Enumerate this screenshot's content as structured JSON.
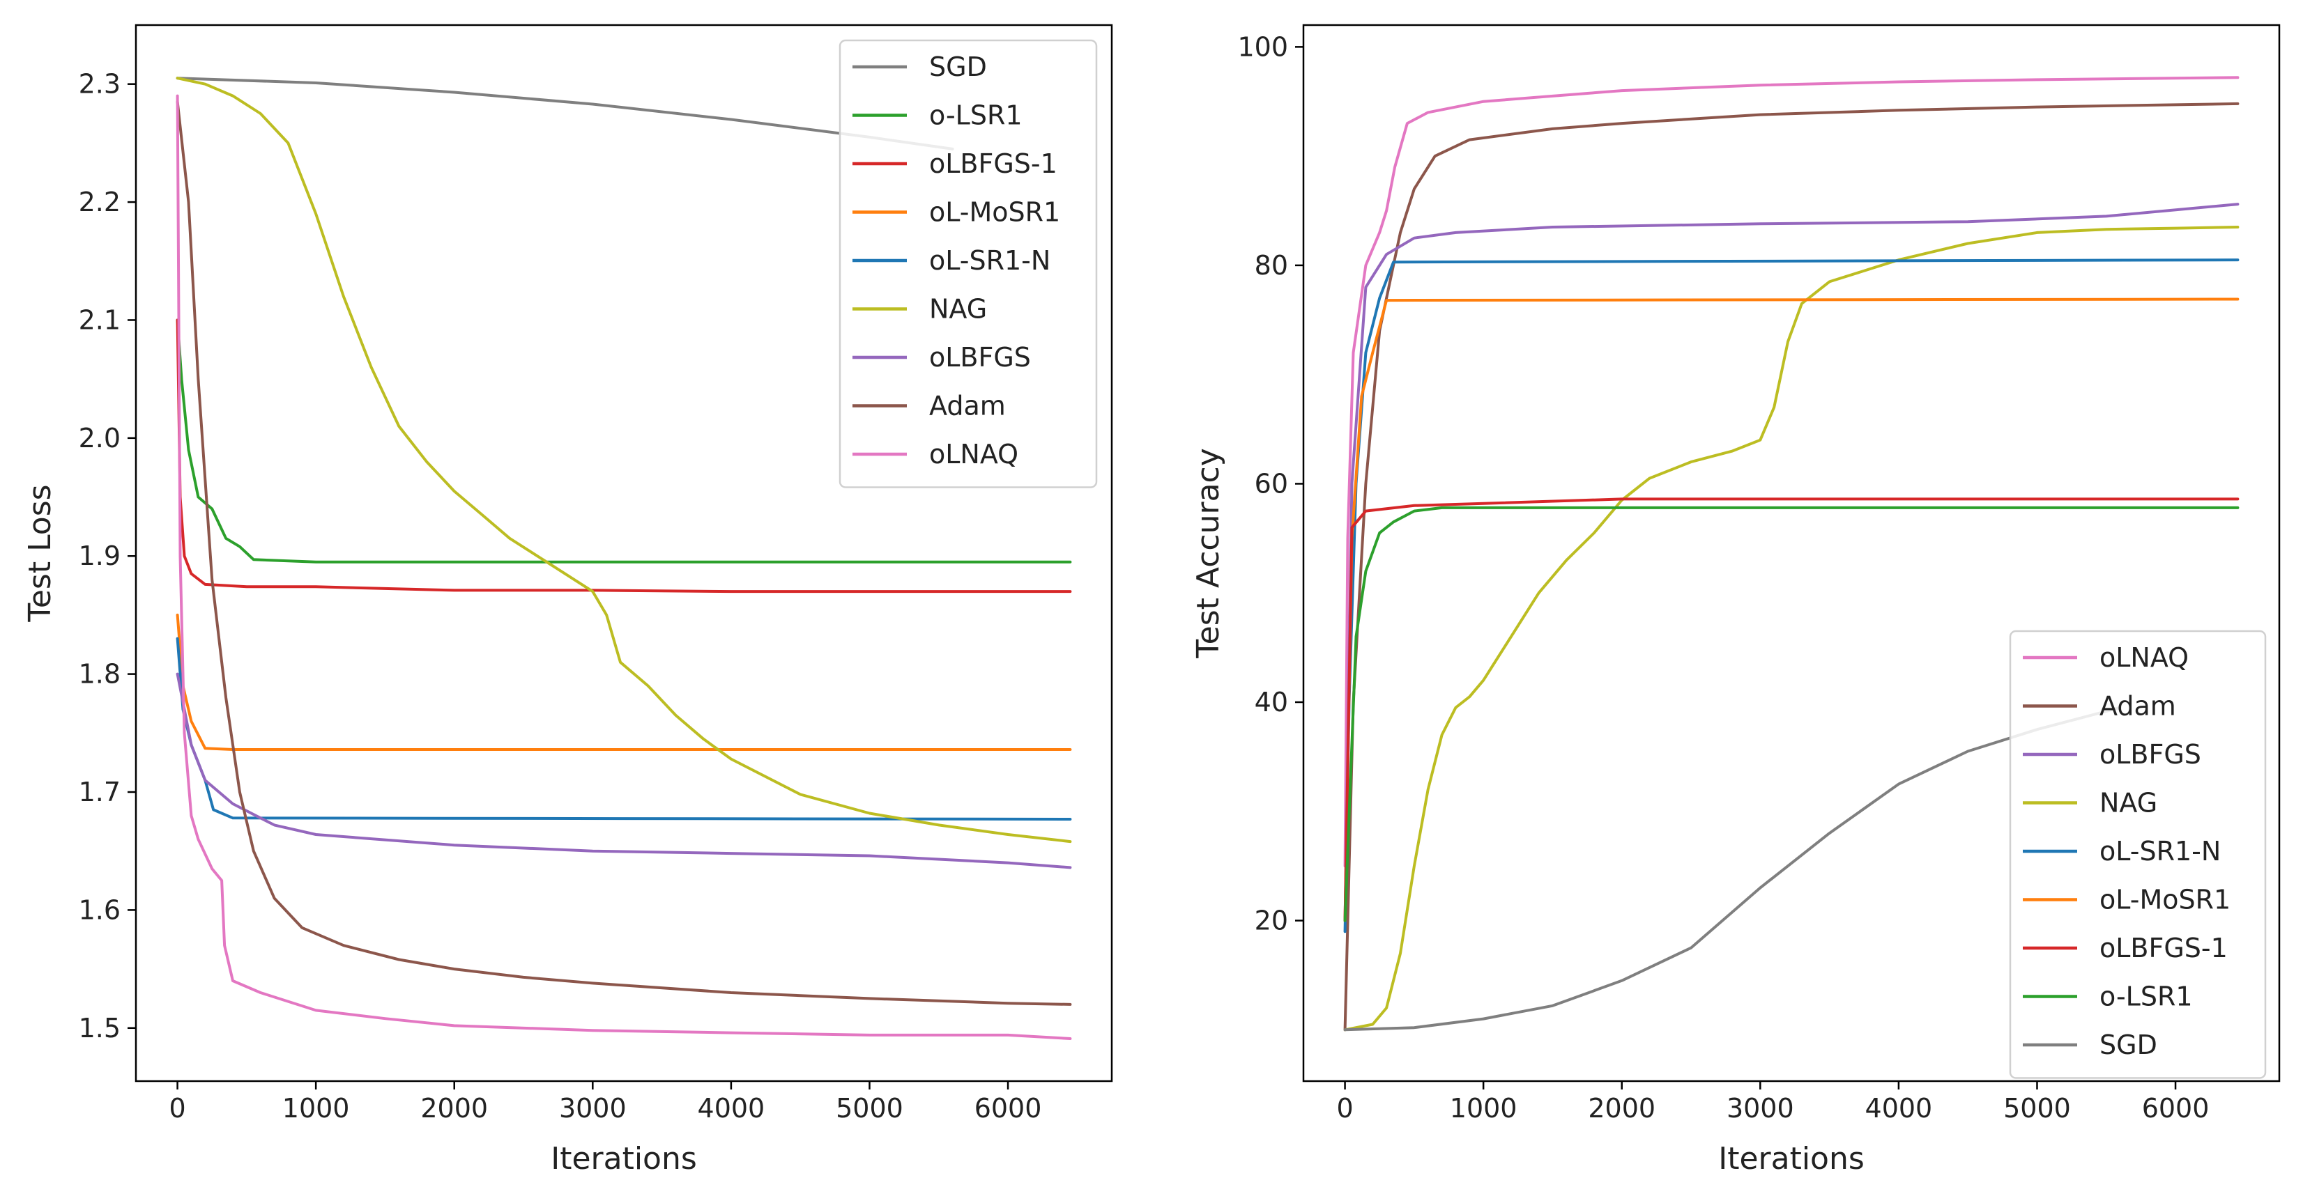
{
  "colors": {
    "SGD": "#7f7f7f",
    "o-LSR1": "#2ca02c",
    "oLBFGS-1": "#d62728",
    "oL-MoSR1": "#ff7f0e",
    "oL-SR1-N": "#1f77b4",
    "NAG": "#bcbd22",
    "oLBFGS": "#9467bd",
    "Adam": "#8c564b",
    "oLNAQ": "#e377c2"
  },
  "chart_data": [
    {
      "type": "line",
      "xlabel": "Iterations",
      "ylabel": "Test Loss",
      "xlim": [
        -300,
        6750
      ],
      "ylim": [
        1.455,
        2.35
      ],
      "xticks": [
        "0",
        "1000",
        "2000",
        "3000",
        "4000",
        "5000",
        "6000"
      ],
      "yticks": [
        "1.5",
        "1.6",
        "1.7",
        "1.8",
        "1.9",
        "2.0",
        "2.1",
        "2.2",
        "2.3"
      ],
      "grid": false,
      "legend_position": "top-right",
      "legend_order": [
        "SGD",
        "o-LSR1",
        "oLBFGS-1",
        "oL-MoSR1",
        "oL-SR1-N",
        "NAG",
        "oLBFGS",
        "Adam",
        "oLNAQ"
      ],
      "series": [
        {
          "name": "SGD",
          "points": [
            [
              0,
              2.305
            ],
            [
              1000,
              2.301
            ],
            [
              2000,
              2.293
            ],
            [
              3000,
              2.283
            ],
            [
              4000,
              2.27
            ],
            [
              5000,
              2.255
            ],
            [
              5600,
              2.245
            ]
          ]
        },
        {
          "name": "o-LSR1",
          "points": [
            [
              0,
              2.1
            ],
            [
              30,
              2.05
            ],
            [
              80,
              1.99
            ],
            [
              150,
              1.95
            ],
            [
              250,
              1.94
            ],
            [
              350,
              1.915
            ],
            [
              450,
              1.908
            ],
            [
              550,
              1.897
            ],
            [
              1000,
              1.895
            ],
            [
              3000,
              1.895
            ],
            [
              6450,
              1.895
            ]
          ]
        },
        {
          "name": "oLBFGS-1",
          "points": [
            [
              0,
              2.1
            ],
            [
              20,
              1.95
            ],
            [
              50,
              1.9
            ],
            [
              100,
              1.885
            ],
            [
              200,
              1.876
            ],
            [
              500,
              1.874
            ],
            [
              1000,
              1.874
            ],
            [
              2000,
              1.871
            ],
            [
              3000,
              1.871
            ],
            [
              4000,
              1.87
            ],
            [
              6450,
              1.87
            ]
          ]
        },
        {
          "name": "oL-MoSR1",
          "points": [
            [
              0,
              1.85
            ],
            [
              40,
              1.79
            ],
            [
              100,
              1.76
            ],
            [
              200,
              1.737
            ],
            [
              400,
              1.736
            ],
            [
              6450,
              1.736
            ]
          ]
        },
        {
          "name": "oL-SR1-N",
          "points": [
            [
              0,
              1.83
            ],
            [
              40,
              1.77
            ],
            [
              100,
              1.74
            ],
            [
              200,
              1.71
            ],
            [
              260,
              1.685
            ],
            [
              400,
              1.678
            ],
            [
              6450,
              1.677
            ]
          ]
        },
        {
          "name": "NAG",
          "points": [
            [
              0,
              2.305
            ],
            [
              200,
              2.3
            ],
            [
              400,
              2.29
            ],
            [
              600,
              2.275
            ],
            [
              800,
              2.25
            ],
            [
              1000,
              2.19
            ],
            [
              1200,
              2.12
            ],
            [
              1400,
              2.06
            ],
            [
              1600,
              2.01
            ],
            [
              1800,
              1.98
            ],
            [
              2000,
              1.955
            ],
            [
              2200,
              1.935
            ],
            [
              2400,
              1.915
            ],
            [
              2600,
              1.9
            ],
            [
              2800,
              1.885
            ],
            [
              3000,
              1.87
            ],
            [
              3100,
              1.85
            ],
            [
              3200,
              1.81
            ],
            [
              3400,
              1.79
            ],
            [
              3600,
              1.765
            ],
            [
              3800,
              1.745
            ],
            [
              4000,
              1.728
            ],
            [
              4500,
              1.698
            ],
            [
              5000,
              1.682
            ],
            [
              5500,
              1.672
            ],
            [
              6000,
              1.664
            ],
            [
              6450,
              1.658
            ]
          ]
        },
        {
          "name": "oLBFGS",
          "points": [
            [
              0,
              1.8
            ],
            [
              100,
              1.74
            ],
            [
              200,
              1.71
            ],
            [
              400,
              1.69
            ],
            [
              700,
              1.672
            ],
            [
              1000,
              1.664
            ],
            [
              2000,
              1.655
            ],
            [
              3000,
              1.65
            ],
            [
              4000,
              1.648
            ],
            [
              5000,
              1.646
            ],
            [
              6000,
              1.64
            ],
            [
              6450,
              1.636
            ]
          ]
        },
        {
          "name": "Adam",
          "points": [
            [
              0,
              2.285
            ],
            [
              80,
              2.2
            ],
            [
              150,
              2.05
            ],
            [
              250,
              1.88
            ],
            [
              350,
              1.78
            ],
            [
              450,
              1.7
            ],
            [
              550,
              1.65
            ],
            [
              700,
              1.61
            ],
            [
              900,
              1.585
            ],
            [
              1200,
              1.57
            ],
            [
              1600,
              1.558
            ],
            [
              2000,
              1.55
            ],
            [
              2500,
              1.543
            ],
            [
              3000,
              1.538
            ],
            [
              4000,
              1.53
            ],
            [
              5000,
              1.525
            ],
            [
              6000,
              1.521
            ],
            [
              6450,
              1.52
            ]
          ]
        },
        {
          "name": "oLNAQ",
          "points": [
            [
              0,
              2.29
            ],
            [
              20,
              1.9
            ],
            [
              50,
              1.75
            ],
            [
              100,
              1.68
            ],
            [
              150,
              1.66
            ],
            [
              250,
              1.635
            ],
            [
              320,
              1.625
            ],
            [
              340,
              1.57
            ],
            [
              400,
              1.54
            ],
            [
              600,
              1.53
            ],
            [
              1000,
              1.515
            ],
            [
              1500,
              1.508
            ],
            [
              2000,
              1.502
            ],
            [
              3000,
              1.498
            ],
            [
              4000,
              1.496
            ],
            [
              5000,
              1.494
            ],
            [
              6000,
              1.494
            ],
            [
              6450,
              1.491
            ]
          ]
        }
      ]
    },
    {
      "type": "line",
      "xlabel": "Iterations",
      "ylabel": "Test Accuracy",
      "xlim": [
        -300,
        6750
      ],
      "ylim": [
        5.3,
        102
      ],
      "xticks": [
        "0",
        "1000",
        "2000",
        "3000",
        "4000",
        "5000",
        "6000"
      ],
      "yticks": [
        "20",
        "40",
        "60",
        "80",
        "100"
      ],
      "grid": false,
      "legend_position": "lower-right",
      "legend_order": [
        "oLNAQ",
        "Adam",
        "oLBFGS",
        "NAG",
        "oL-SR1-N",
        "oL-MoSR1",
        "oLBFGS-1",
        "o-LSR1",
        "SGD"
      ],
      "series": [
        {
          "name": "oLNAQ",
          "points": [
            [
              0,
              25
            ],
            [
              20,
              55
            ],
            [
              60,
              72
            ],
            [
              150,
              80
            ],
            [
              250,
              83
            ],
            [
              300,
              85
            ],
            [
              360,
              89
            ],
            [
              450,
              93
            ],
            [
              600,
              94
            ],
            [
              1000,
              95
            ],
            [
              1500,
              95.5
            ],
            [
              2000,
              96
            ],
            [
              3000,
              96.5
            ],
            [
              4000,
              96.8
            ],
            [
              5000,
              97
            ],
            [
              6450,
              97.2
            ]
          ]
        },
        {
          "name": "Adam",
          "points": [
            [
              0,
              10
            ],
            [
              60,
              40
            ],
            [
              150,
              60
            ],
            [
              250,
              74
            ],
            [
              400,
              83
            ],
            [
              500,
              87
            ],
            [
              650,
              90
            ],
            [
              900,
              91.5
            ],
            [
              1500,
              92.5
            ],
            [
              2000,
              93
            ],
            [
              3000,
              93.8
            ],
            [
              4000,
              94.2
            ],
            [
              5000,
              94.5
            ],
            [
              6450,
              94.8
            ]
          ]
        },
        {
          "name": "oLBFGS",
          "points": [
            [
              0,
              20
            ],
            [
              50,
              60
            ],
            [
              150,
              78
            ],
            [
              300,
              81
            ],
            [
              500,
              82.5
            ],
            [
              800,
              83
            ],
            [
              1500,
              83.5
            ],
            [
              3000,
              83.8
            ],
            [
              4500,
              84
            ],
            [
              5500,
              84.5
            ],
            [
              6450,
              85.6
            ]
          ]
        },
        {
          "name": "NAG",
          "points": [
            [
              0,
              10
            ],
            [
              200,
              10.5
            ],
            [
              300,
              12
            ],
            [
              400,
              17
            ],
            [
              500,
              25
            ],
            [
              600,
              32
            ],
            [
              700,
              37
            ],
            [
              800,
              39.5
            ],
            [
              900,
              40.5
            ],
            [
              1000,
              42
            ],
            [
              1200,
              46
            ],
            [
              1400,
              50
            ],
            [
              1600,
              53
            ],
            [
              1800,
              55.5
            ],
            [
              2000,
              58.5
            ],
            [
              2200,
              60.5
            ],
            [
              2500,
              62
            ],
            [
              2800,
              63
            ],
            [
              3000,
              64
            ],
            [
              3100,
              67
            ],
            [
              3200,
              73
            ],
            [
              3300,
              76.5
            ],
            [
              3500,
              78.5
            ],
            [
              4000,
              80.5
            ],
            [
              4500,
              82
            ],
            [
              5000,
              83
            ],
            [
              5500,
              83.3
            ],
            [
              6000,
              83.4
            ],
            [
              6450,
              83.5
            ]
          ]
        },
        {
          "name": "oL-SR1-N",
          "points": [
            [
              0,
              19
            ],
            [
              30,
              40
            ],
            [
              80,
              60
            ],
            [
              150,
              72
            ],
            [
              250,
              77
            ],
            [
              350,
              80.3
            ],
            [
              6450,
              80.5
            ]
          ]
        },
        {
          "name": "oL-MoSR1",
          "points": [
            [
              0,
              20
            ],
            [
              50,
              55
            ],
            [
              120,
              68
            ],
            [
              200,
              72
            ],
            [
              300,
              76.8
            ],
            [
              6450,
              76.9
            ]
          ]
        },
        {
          "name": "oLBFGS-1",
          "points": [
            [
              0,
              20
            ],
            [
              50,
              56
            ],
            [
              150,
              57.5
            ],
            [
              500,
              58
            ],
            [
              1000,
              58.2
            ],
            [
              2000,
              58.6
            ],
            [
              6450,
              58.6
            ]
          ]
        },
        {
          "name": "o-LSR1",
          "points": [
            [
              0,
              20
            ],
            [
              80,
              46
            ],
            [
              150,
              52
            ],
            [
              250,
              55.5
            ],
            [
              350,
              56.5
            ],
            [
              500,
              57.5
            ],
            [
              700,
              57.8
            ],
            [
              6450,
              57.8
            ]
          ]
        },
        {
          "name": "SGD",
          "points": [
            [
              0,
              10
            ],
            [
              500,
              10.2
            ],
            [
              1000,
              11
            ],
            [
              1500,
              12.2
            ],
            [
              2000,
              14.5
            ],
            [
              2500,
              17.5
            ],
            [
              3000,
              23
            ],
            [
              3500,
              28
            ],
            [
              4000,
              32.5
            ],
            [
              4500,
              35.5
            ],
            [
              5000,
              37.5
            ],
            [
              5600,
              39.5
            ]
          ]
        }
      ]
    }
  ]
}
